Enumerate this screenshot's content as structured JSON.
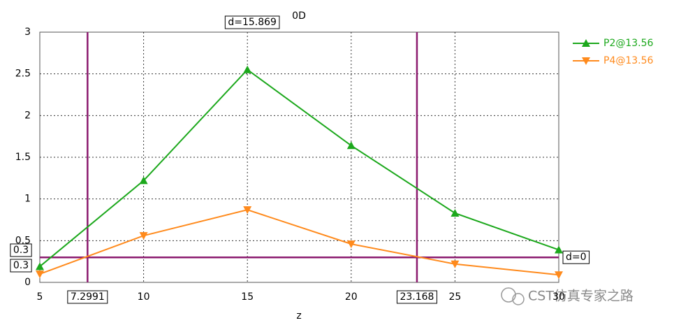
{
  "chart_data": {
    "type": "line",
    "title": "0D",
    "x_label": "z",
    "x": [
      5,
      10,
      15,
      20,
      25,
      30
    ],
    "series": [
      {
        "name": "P2@13.56",
        "color": "#1ca81c",
        "marker": "triangle-up",
        "values": [
          0.19,
          1.22,
          2.55,
          1.64,
          0.83,
          0.39
        ]
      },
      {
        "name": "P4@13.56",
        "color": "#ff8a1c",
        "marker": "triangle-down",
        "values": [
          0.1,
          0.56,
          0.87,
          0.46,
          0.22,
          0.09
        ]
      }
    ],
    "xlim": [
      5,
      30
    ],
    "ylim": [
      0,
      3
    ],
    "xticks": [
      5,
      10,
      15,
      20,
      25,
      30
    ],
    "yticks": [
      0,
      0.5,
      1,
      1.5,
      2,
      2.5,
      3
    ],
    "grid": true,
    "legend": "top-right",
    "marker_color": "#8b1a6e",
    "x_markers": [
      7.2991,
      23.168
    ],
    "y_markers": [
      0.3,
      0.3
    ],
    "x_marker_distance": "d=15.869",
    "y_marker_distance": "d=0",
    "watermark": "CST仿真专家之路"
  }
}
